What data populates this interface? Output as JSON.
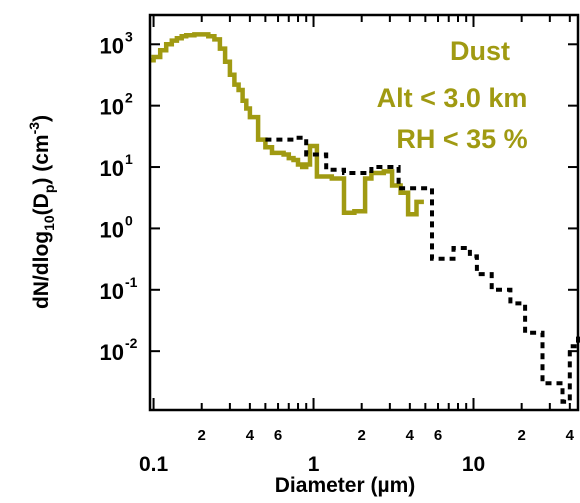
{
  "chart_data": {
    "type": "line",
    "xlabel": "Diameter (µm)",
    "ylabel": {
      "parts": [
        {
          "t": "dN/dlog"
        },
        {
          "t": "10",
          "s": "sub"
        },
        {
          "t": "(D"
        },
        {
          "t": "p",
          "s": "sub"
        },
        {
          "t": ") (cm"
        },
        {
          "t": "-3",
          "s": "sup"
        },
        {
          "t": ")"
        }
      ]
    },
    "x_scale": "log",
    "y_scale": "log",
    "xlim": [
      0.095,
      45
    ],
    "ylim": [
      0.0011,
      3000
    ],
    "x_major_ticks": [
      {
        "value": 0.1,
        "label": "0.1"
      },
      {
        "value": 1,
        "label": "1"
      },
      {
        "value": 10,
        "label": "10"
      }
    ],
    "x_minor_labeled": [
      {
        "value": 0.2,
        "label": "2"
      },
      {
        "value": 0.4,
        "label": "4"
      },
      {
        "value": 0.6,
        "label": "6"
      },
      {
        "value": 2,
        "label": "2"
      },
      {
        "value": 4,
        "label": "4"
      },
      {
        "value": 6,
        "label": "6"
      },
      {
        "value": 20,
        "label": "2"
      },
      {
        "value": 40,
        "label": "4"
      }
    ],
    "y_major_ticks": [
      {
        "value": 0.01,
        "mant": "10",
        "exp": "-2"
      },
      {
        "value": 0.1,
        "mant": "10",
        "exp": "-1"
      },
      {
        "value": 1,
        "mant": "10",
        "exp": "0"
      },
      {
        "value": 10,
        "mant": "10",
        "exp": "1"
      },
      {
        "value": 100,
        "mant": "10",
        "exp": "2"
      },
      {
        "value": 1000,
        "mant": "10",
        "exp": "3"
      }
    ],
    "annotation": [
      "Dust",
      "Alt < 3.0 km",
      "RH < 35 %"
    ],
    "annotation_color": "#a09a12",
    "grid": false,
    "series": [
      {
        "style": "solid-step",
        "color": "#a09a12",
        "points": [
          [
            0.095,
            550
          ],
          [
            0.1,
            620
          ],
          [
            0.11,
            800
          ],
          [
            0.12,
            1000
          ],
          [
            0.13,
            1150
          ],
          [
            0.14,
            1250
          ],
          [
            0.15,
            1350
          ],
          [
            0.16,
            1400
          ],
          [
            0.18,
            1450
          ],
          [
            0.2,
            1450
          ],
          [
            0.22,
            1350
          ],
          [
            0.24,
            1200
          ],
          [
            0.26,
            850
          ],
          [
            0.28,
            520
          ],
          [
            0.3,
            320
          ],
          [
            0.32,
            220
          ],
          [
            0.34,
            180
          ],
          [
            0.36,
            120
          ],
          [
            0.38,
            90
          ],
          [
            0.4,
            65
          ],
          [
            0.45,
            28
          ],
          [
            0.5,
            21
          ],
          [
            0.55,
            17
          ],
          [
            0.65,
            16
          ],
          [
            0.7,
            14
          ],
          [
            0.75,
            13
          ],
          [
            0.8,
            11
          ],
          [
            0.85,
            10
          ],
          [
            0.9,
            11
          ],
          [
            0.95,
            22
          ],
          [
            1.05,
            7
          ],
          [
            1.3,
            6.5
          ],
          [
            1.55,
            1.8
          ],
          [
            1.8,
            1.9
          ],
          [
            2.1,
            6.5
          ],
          [
            2.3,
            8
          ],
          [
            2.75,
            8.5
          ],
          [
            3.1,
            5
          ],
          [
            3.5,
            3.8
          ],
          [
            3.9,
            1.7
          ],
          [
            4.4,
            2.7
          ],
          [
            4.9,
            2.7
          ]
        ]
      },
      {
        "style": "dotted-step",
        "color": "#000000",
        "points": [
          [
            0.5,
            28
          ],
          [
            0.75,
            30
          ],
          [
            0.9,
            16
          ],
          [
            1.2,
            9
          ],
          [
            1.55,
            8
          ],
          [
            2.3,
            10
          ],
          [
            3.4,
            4.5
          ],
          [
            5.5,
            0.32
          ],
          [
            7.5,
            0.48
          ],
          [
            9.5,
            0.35
          ],
          [
            10.5,
            0.18
          ],
          [
            13,
            0.1
          ],
          [
            17,
            0.06
          ],
          [
            21,
            0.02
          ],
          [
            27,
            0.003
          ],
          [
            36,
            0.0015
          ],
          [
            40,
            0.012
          ],
          [
            45,
            0.018
          ]
        ]
      }
    ]
  }
}
